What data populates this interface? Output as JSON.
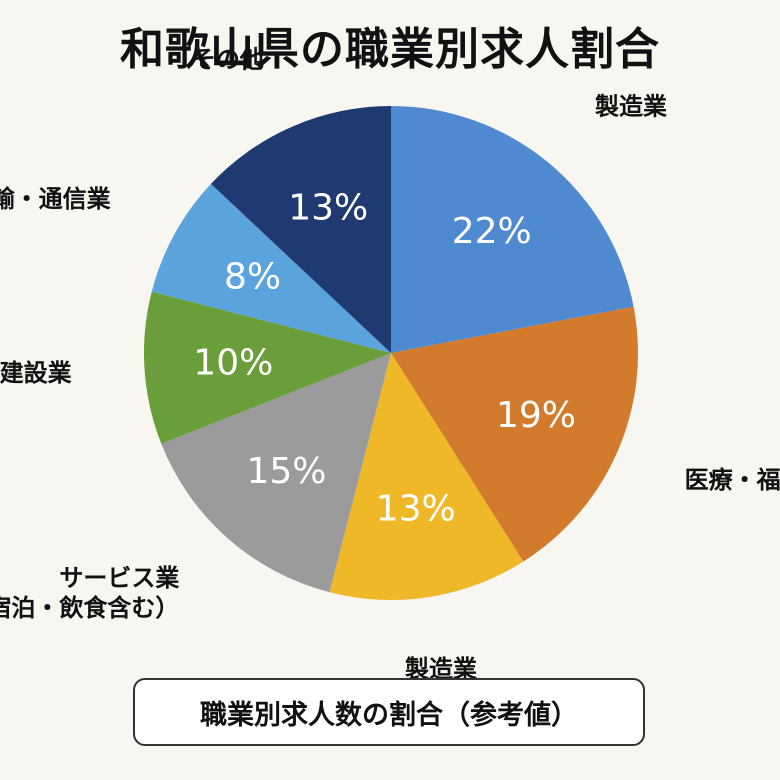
{
  "title": "和歌山県の職業別求人割合",
  "caption": "職業別求人数の割合（参考値）",
  "chart_data": {
    "type": "pie",
    "title": "和歌山県の職業別求人割合",
    "start_angle_deg": 0,
    "direction": "clockwise",
    "slices": [
      {
        "label": "製造業",
        "value": 22,
        "value_label": "22%",
        "color": "#4f89d0"
      },
      {
        "label": "医療・福祉",
        "value": 19,
        "value_label": "19%",
        "color": "#d27b2d"
      },
      {
        "label": "製造業",
        "value": 13,
        "value_label": "13%",
        "color": "#eeb829"
      },
      {
        "label": "サービス業\n（宿泊・飲食含む）",
        "value": 15,
        "value_label": "15%",
        "color": "#9b9b9b"
      },
      {
        "label": "建設業",
        "value": 10,
        "value_label": "10%",
        "color": "#6a9e3a"
      },
      {
        "label": "運輸・通信業",
        "value": 8,
        "value_label": "8%",
        "color": "#5ba3dd"
      },
      {
        "label": "その他",
        "value": 13,
        "value_label": "13%",
        "color": "#1f3a70"
      }
    ]
  }
}
